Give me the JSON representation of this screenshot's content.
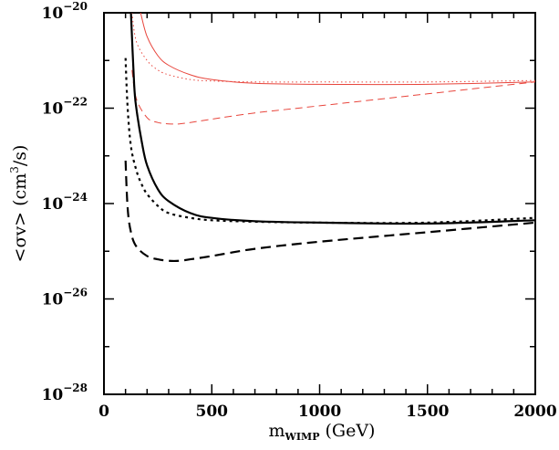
{
  "chart_data": {
    "type": "line",
    "title": "",
    "xlabel": {
      "main": "m",
      "sub": "WIMP",
      "rest": "(GeV)"
    },
    "ylabel": {
      "before": "<σv>  (cm",
      "sup": "3",
      "after": "/s)"
    },
    "xlim": [
      0,
      2000
    ],
    "ylim_log10": [
      -28,
      -20
    ],
    "yscale": "log",
    "grid": false,
    "legend": "none",
    "x_ticks": [
      0,
      500,
      1000,
      1500,
      2000
    ],
    "x_tick_labels": [
      "0",
      "500",
      "1000",
      "1500",
      "2000"
    ],
    "y_tick_exponents": [
      -28,
      -26,
      -24,
      -22,
      -20
    ],
    "y_tick_labels": [
      {
        "base": "10",
        "exp": "−28"
      },
      {
        "base": "10",
        "exp": "−26"
      },
      {
        "base": "10",
        "exp": "−24"
      },
      {
        "base": "10",
        "exp": "−22"
      },
      {
        "base": "10",
        "exp": "−20"
      }
    ],
    "series": [
      {
        "color": "#e8453c",
        "style": "solid",
        "weight": "thin",
        "x": [
          170,
          200,
          250,
          300,
          400,
          500,
          700,
          1000,
          1500,
          2000
        ],
        "log10_y": [
          -20.0,
          -20.5,
          -20.9,
          -21.1,
          -21.3,
          -21.4,
          -21.48,
          -21.5,
          -21.5,
          -21.45
        ]
      },
      {
        "color": "#e8453c",
        "style": "dotted",
        "weight": "thin",
        "x": [
          130,
          150,
          200,
          250,
          300,
          400,
          500,
          700,
          1000,
          1500,
          2000
        ],
        "log10_y": [
          -20.0,
          -20.6,
          -21.0,
          -21.2,
          -21.3,
          -21.4,
          -21.43,
          -21.45,
          -21.45,
          -21.45,
          -21.42
        ]
      },
      {
        "color": "#e8453c",
        "style": "dashed",
        "weight": "thin",
        "x": [
          130,
          150,
          200,
          250,
          300,
          350,
          400,
          500,
          700,
          1000,
          1500,
          2000
        ],
        "log10_y": [
          -21.2,
          -21.8,
          -22.2,
          -22.3,
          -22.33,
          -22.33,
          -22.3,
          -22.23,
          -22.1,
          -21.95,
          -21.7,
          -21.45
        ]
      },
      {
        "color": "#000000",
        "style": "solid",
        "weight": "thick",
        "x": [
          125,
          140,
          150,
          175,
          200,
          250,
          300,
          400,
          500,
          700,
          1000,
          1500,
          2000
        ],
        "log10_y": [
          -20.0,
          -21.5,
          -22.0,
          -22.7,
          -23.2,
          -23.7,
          -23.95,
          -24.2,
          -24.3,
          -24.37,
          -24.4,
          -24.42,
          -24.35
        ]
      },
      {
        "color": "#000000",
        "style": "dotted",
        "weight": "thick",
        "x": [
          100,
          110,
          125,
          150,
          175,
          200,
          250,
          300,
          400,
          500,
          700,
          1000,
          1500,
          2000
        ],
        "log10_y": [
          -20.95,
          -22.0,
          -22.8,
          -23.3,
          -23.6,
          -23.8,
          -24.05,
          -24.2,
          -24.3,
          -24.35,
          -24.38,
          -24.4,
          -24.4,
          -24.3
        ]
      },
      {
        "color": "#000000",
        "style": "dashed",
        "weight": "thick",
        "x": [
          100,
          110,
          125,
          150,
          200,
          250,
          300,
          350,
          400,
          500,
          700,
          1000,
          1500,
          2000
        ],
        "log10_y": [
          -23.1,
          -24.1,
          -24.6,
          -24.9,
          -25.1,
          -25.17,
          -25.2,
          -25.2,
          -25.17,
          -25.1,
          -24.95,
          -24.8,
          -24.6,
          -24.4
        ]
      }
    ]
  }
}
